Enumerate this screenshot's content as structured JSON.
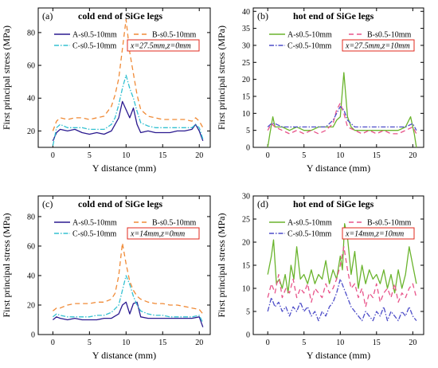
{
  "chart_data": [
    {
      "type": "line",
      "panel_label": "(a)",
      "title": "cold end of SiGe legs",
      "xlabel": "Y distance (mm)",
      "ylabel": "First principal stress (MPa)",
      "xlim": [
        -2,
        21.5
      ],
      "ylim": [
        10,
        95
      ],
      "xticks": [
        "0",
        "5",
        "10",
        "15",
        "20"
      ],
      "yticks": [
        "20",
        "40",
        "60",
        "80"
      ],
      "ytick_values": [
        20,
        40,
        60,
        80
      ],
      "annotation": "x=27.5mm,z=0mm",
      "legend_columns": 2,
      "series": [
        {
          "name": "A-s0.5-10mm",
          "color": "#2b1a8f",
          "dash": "solid",
          "x": [
            0,
            0.5,
            1,
            2,
            3,
            4,
            5,
            6,
            7,
            8,
            8.5,
            9,
            9.5,
            10,
            10.5,
            11,
            11.5,
            12,
            13,
            14,
            15,
            16,
            17,
            18,
            19,
            19.5,
            20,
            20.5
          ],
          "y": [
            14,
            19,
            21,
            20,
            21,
            19,
            18,
            19,
            18,
            20,
            24,
            28,
            38,
            33,
            28,
            34,
            24,
            19,
            20,
            19,
            19,
            19,
            20,
            20,
            21,
            24,
            20,
            14
          ]
        },
        {
          "name": "B-s0.5-10mm",
          "color": "#f08a36",
          "dash": "6,4",
          "x": [
            0,
            0.5,
            1,
            2,
            3,
            4,
            5,
            6,
            7,
            8,
            8.5,
            9,
            9.5,
            10,
            10.5,
            11,
            11.5,
            12,
            13,
            14,
            15,
            16,
            17,
            18,
            19,
            19.5,
            20,
            20.5
          ],
          "y": [
            20,
            26,
            28,
            27,
            28,
            28,
            27,
            28,
            29,
            35,
            42,
            52,
            70,
            88,
            68,
            55,
            42,
            33,
            29,
            28,
            27,
            27,
            27,
            27,
            26,
            28,
            26,
            22
          ]
        },
        {
          "name": "C-s0.5-10mm",
          "color": "#33c1d1",
          "dash": "6,2,1.5,2",
          "x": [
            0,
            0.5,
            1,
            2,
            3,
            4,
            5,
            6,
            7,
            8,
            8.5,
            9,
            9.5,
            10,
            10.5,
            11,
            11.5,
            12,
            13,
            14,
            15,
            16,
            17,
            18,
            19,
            19.5,
            20,
            20.5
          ],
          "y": [
            11,
            22,
            24,
            22,
            22,
            22,
            21,
            21,
            21,
            24,
            28,
            36,
            46,
            54,
            46,
            40,
            32,
            25,
            23,
            22,
            22,
            22,
            22,
            22,
            22,
            24,
            22,
            15
          ]
        }
      ]
    },
    {
      "type": "line",
      "panel_label": "(b)",
      "title": "hot end of SiGe legs",
      "xlabel": "Y distance (mm)",
      "ylabel": "First principal stress (MPa)",
      "xlim": [
        -2,
        21.5
      ],
      "ylim": [
        0,
        41
      ],
      "xticks": [
        "0",
        "5",
        "10",
        "15",
        "20"
      ],
      "yticks": [
        "0",
        "5",
        "10",
        "15",
        "20",
        "25",
        "30",
        "35",
        "40"
      ],
      "ytick_values": [
        0,
        5,
        10,
        15,
        20,
        25,
        30,
        35,
        40
      ],
      "annotation": "x=27.5mm,z=10mm",
      "legend_columns": 2,
      "series": [
        {
          "name": "A-s0.5-10mm",
          "color": "#6ab42d",
          "dash": "solid",
          "x": [
            0,
            0.3,
            0.7,
            1,
            2,
            3,
            4,
            5,
            6,
            7,
            8,
            9,
            9.5,
            10,
            10.5,
            11,
            11.5,
            12,
            13,
            14,
            15,
            16,
            17,
            18,
            19,
            19.7,
            20.2,
            20.5
          ],
          "y": [
            0,
            4,
            9,
            6,
            6,
            5,
            6,
            5,
            5,
            6,
            6,
            6,
            8,
            9,
            22,
            9,
            6,
            5,
            5,
            5,
            5,
            5,
            5,
            5,
            6,
            9,
            4,
            0
          ]
        },
        {
          "name": "B-s0.5-10mm",
          "color": "#e8548a",
          "dash": "6,4",
          "x": [
            0,
            0.5,
            1,
            2,
            3,
            4,
            5,
            6,
            7,
            8,
            9,
            9.5,
            10,
            10.5,
            11,
            12,
            13,
            14,
            15,
            16,
            17,
            18,
            19,
            20,
            20.5
          ],
          "y": [
            5,
            7,
            6,
            5,
            4,
            5,
            4,
            5,
            4,
            5,
            7,
            11,
            13,
            10,
            6,
            5,
            4,
            5,
            4,
            5,
            4,
            4,
            5,
            6,
            4
          ]
        },
        {
          "name": "C-s0.5-10mm",
          "color": "#4d4dc8",
          "dash": "6,2,1.5,2",
          "x": [
            0,
            0.5,
            1,
            2,
            3,
            4,
            5,
            6,
            7,
            8,
            9,
            9.5,
            10,
            10.5,
            11,
            12,
            13,
            14,
            15,
            16,
            17,
            18,
            19,
            20,
            20.5
          ],
          "y": [
            6,
            7,
            7,
            6,
            6,
            6,
            6,
            6,
            6,
            6,
            8,
            10,
            12,
            11,
            8,
            6,
            6,
            6,
            6,
            6,
            6,
            6,
            6,
            7,
            5
          ]
        }
      ]
    },
    {
      "type": "line",
      "panel_label": "(c)",
      "title": "cold end of SiGe legs",
      "xlabel": "Y distance (mm)",
      "ylabel": "First principal stress (MPa)",
      "xlim": [
        -2,
        21.5
      ],
      "ylim": [
        0,
        94
      ],
      "xticks": [
        "0",
        "5",
        "10",
        "15",
        "20"
      ],
      "yticks": [
        "0",
        "20",
        "40",
        "60",
        "80"
      ],
      "ytick_values": [
        0,
        20,
        40,
        60,
        80
      ],
      "annotation": "x=14mm,z=0mm",
      "legend_columns": 2,
      "series": [
        {
          "name": "A-s0.5-10mm",
          "color": "#2b1a8f",
          "dash": "solid",
          "x": [
            0,
            0.5,
            1,
            2,
            3,
            4,
            5,
            6,
            7,
            8,
            9,
            9.5,
            10,
            10.5,
            11,
            11.5,
            12,
            13,
            14,
            15,
            16,
            17,
            18,
            19,
            20,
            20.5
          ],
          "y": [
            10,
            12,
            11,
            10,
            11,
            10,
            10,
            10,
            11,
            11,
            14,
            20,
            22,
            14,
            21,
            22,
            12,
            11,
            11,
            11,
            11,
            11,
            11,
            11,
            12,
            5
          ]
        },
        {
          "name": "B-s0.5-10mm",
          "color": "#f08a36",
          "dash": "6,4",
          "x": [
            0,
            0.5,
            1,
            2,
            3,
            4,
            5,
            6,
            7,
            8,
            8.5,
            9,
            9.5,
            10,
            10.5,
            11,
            11.5,
            12,
            13,
            14,
            15,
            16,
            17,
            18,
            19,
            20,
            20.5
          ],
          "y": [
            16,
            18,
            18,
            20,
            21,
            21,
            21,
            22,
            22,
            24,
            28,
            40,
            62,
            48,
            36,
            30,
            26,
            24,
            22,
            21,
            21,
            20,
            20,
            19,
            18,
            17,
            14
          ]
        },
        {
          "name": "C-s0.5-10mm",
          "color": "#33c1d1",
          "dash": "6,2,1.5,2",
          "x": [
            0,
            0.5,
            1,
            2,
            3,
            4,
            5,
            6,
            7,
            8,
            9,
            9.5,
            10,
            10.5,
            11,
            11.5,
            12,
            13,
            14,
            15,
            16,
            17,
            18,
            19,
            20,
            20.5
          ],
          "y": [
            12,
            14,
            13,
            12,
            12,
            12,
            12,
            13,
            13,
            15,
            20,
            30,
            40,
            34,
            26,
            20,
            16,
            14,
            13,
            13,
            12,
            12,
            12,
            12,
            13,
            8
          ]
        }
      ]
    },
    {
      "type": "line",
      "panel_label": "(d)",
      "title": "hot end of SiGe legs",
      "xlabel": "Y distance (mm)",
      "ylabel": "First principal stress (MPa)",
      "xlim": [
        -2,
        21.5
      ],
      "ylim": [
        0,
        30
      ],
      "xticks": [
        "0",
        "5",
        "10",
        "15",
        "20"
      ],
      "yticks": [
        "0",
        "5",
        "10",
        "15",
        "20",
        "25",
        "30"
      ],
      "ytick_values": [
        0,
        5,
        10,
        15,
        20,
        25,
        30
      ],
      "annotation": "x=14mm,z=10mm",
      "legend_columns": 2,
      "series": [
        {
          "name": "A-s0.5-10mm",
          "color": "#6ab42d",
          "dash": "solid",
          "x": [
            0,
            0.5,
            0.8,
            1.2,
            1.6,
            2,
            2.4,
            2.8,
            3.2,
            3.6,
            4,
            4.5,
            5,
            5.5,
            6,
            6.5,
            7,
            7.5,
            8,
            8.5,
            9,
            9.5,
            10,
            10.3,
            10.6,
            11,
            11.5,
            12,
            12.5,
            13,
            13.5,
            14,
            14.5,
            15,
            15.5,
            16,
            16.5,
            17,
            17.5,
            18,
            18.5,
            19,
            19.5,
            20,
            20.5
          ],
          "y": [
            13,
            17,
            20.5,
            11,
            12,
            10,
            13,
            9,
            15,
            12,
            19,
            12,
            13,
            11,
            14,
            11,
            13,
            12,
            16,
            11,
            14,
            12,
            17,
            14,
            24,
            21,
            13,
            18,
            10,
            15,
            11,
            14,
            12,
            13,
            11,
            14,
            10,
            13,
            9,
            14,
            10,
            13,
            19,
            15,
            11
          ]
        },
        {
          "name": "B-s0.5-10mm",
          "color": "#e8548a",
          "dash": "6,4",
          "x": [
            0,
            0.5,
            1,
            1.5,
            2,
            2.5,
            3,
            3.5,
            4,
            4.5,
            5,
            5.5,
            6,
            6.5,
            7,
            7.5,
            8,
            8.5,
            9,
            9.5,
            10,
            10.5,
            11,
            11.5,
            12,
            12.5,
            13,
            13.5,
            14,
            14.5,
            15,
            15.5,
            16,
            16.5,
            17,
            17.5,
            18,
            18.5,
            19,
            19.5,
            20,
            20.5
          ],
          "y": [
            8,
            11,
            9,
            13,
            8,
            10,
            9,
            12,
            8,
            10,
            9,
            11,
            7,
            10,
            9,
            8,
            11,
            9,
            10,
            12,
            15,
            19,
            14,
            10,
            11,
            8,
            10,
            6,
            9,
            8,
            11,
            7,
            9,
            10,
            8,
            11,
            7,
            9,
            8,
            10,
            11,
            8
          ]
        },
        {
          "name": "C-s0.5-10mm",
          "color": "#4d4dc8",
          "dash": "6,2,1.5,2",
          "x": [
            0,
            0.5,
            1,
            1.5,
            2,
            2.5,
            3,
            3.5,
            4,
            4.5,
            5,
            5.5,
            6,
            6.5,
            7,
            7.5,
            8,
            8.5,
            9,
            9.5,
            10,
            10.5,
            11,
            11.5,
            12,
            12.5,
            13,
            13.5,
            14,
            14.5,
            15,
            15.5,
            16,
            16.5,
            17,
            17.5,
            18,
            18.5,
            19,
            19.5,
            20,
            20.5
          ],
          "y": [
            5,
            8,
            6,
            7,
            5,
            6,
            4,
            6,
            5,
            7,
            5,
            6,
            4,
            5,
            3,
            5,
            4,
            6,
            7,
            9,
            12,
            10,
            8,
            6,
            5,
            4,
            3,
            5,
            4,
            3,
            5,
            4,
            6,
            3,
            5,
            4,
            3,
            5,
            4,
            6,
            4,
            3
          ]
        }
      ]
    }
  ]
}
